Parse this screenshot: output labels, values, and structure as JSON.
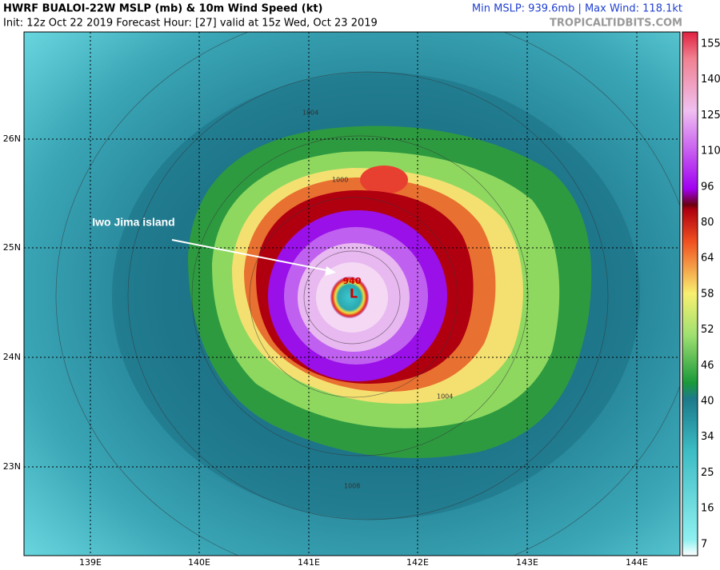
{
  "header": {
    "title": "HWRF BUALOI-22W MSLP (mb) & 10m Wind Speed (kt)",
    "subtitle": "Init: 12z Oct 22 2019   Forecast Hour: [27]   valid at 15z Wed, Oct 23 2019",
    "stats": "Min MSLP: 939.6mb | Max Wind: 118.1kt",
    "source": "TROPICALTIDBITS.COM"
  },
  "map": {
    "annotation": "Iwo Jima island",
    "low_marker": "L",
    "center_pressure": "940",
    "isobar_labels": [
      "1004",
      "1000",
      "1004",
      "1008"
    ],
    "lat_labels": [
      "26N",
      "25N",
      "24N",
      "23N"
    ],
    "lon_labels": [
      "139E",
      "140E",
      "141E",
      "142E",
      "143E",
      "144E"
    ]
  },
  "colorbar": {
    "labels": [
      "155",
      "140",
      "125",
      "110",
      "96",
      "80",
      "64",
      "58",
      "52",
      "46",
      "40",
      "34",
      "25",
      "16",
      "7"
    ]
  }
}
